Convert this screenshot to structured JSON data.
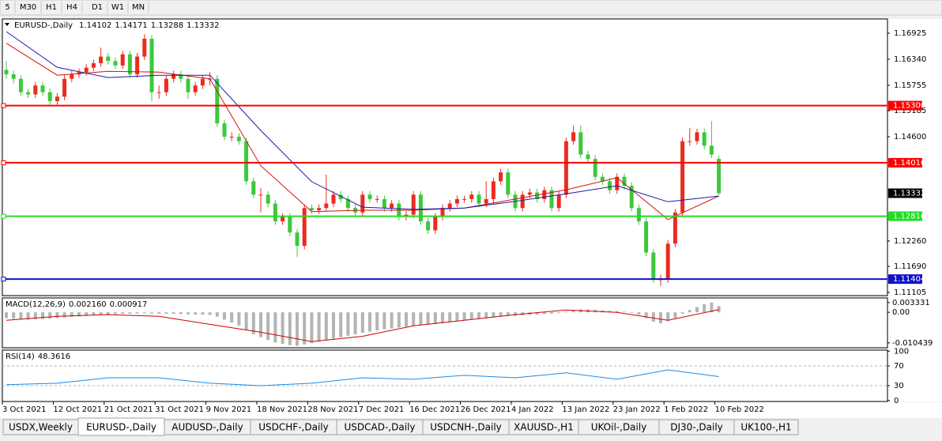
{
  "toolbar": [
    "5",
    "M30",
    "H1",
    "H4",
    "D1",
    "W1",
    "MN"
  ],
  "tabs": [
    {
      "label": "USDX,Weekly",
      "active": false
    },
    {
      "label": "EURUSD-,Daily",
      "active": true
    },
    {
      "label": "AUDUSD-,Daily",
      "active": false
    },
    {
      "label": "USDCHF-,Daily",
      "active": false
    },
    {
      "label": "USDCAD-,Daily",
      "active": false
    },
    {
      "label": "USDCNH-,Daily",
      "active": false
    },
    {
      "label": "XAUUSD-,H1",
      "active": false
    },
    {
      "label": "UKOil-,Daily",
      "active": false
    },
    {
      "label": "DJ30-,Daily",
      "active": false
    },
    {
      "label": "UK100-,H1",
      "active": false
    }
  ],
  "chart_data": {
    "type": "candlestick",
    "title": "EURUSD-,Daily",
    "categories": [
      "3 Oct 2021",
      null,
      null,
      null,
      null,
      null,
      null,
      "12 Oct 2021",
      null,
      null,
      null,
      null,
      null,
      null,
      "21 Oct 2021",
      null,
      null,
      null,
      null,
      null,
      null,
      "31 Oct 2021",
      null,
      null,
      null,
      null,
      null,
      null,
      "9 Nov 2021",
      null,
      null,
      null,
      null,
      null,
      null,
      "18 Nov 2021",
      null,
      null,
      null,
      null,
      null,
      null,
      "28 Nov 2021",
      null,
      null,
      null,
      null,
      null,
      null,
      "7 Dec 2021",
      null,
      null,
      null,
      null,
      null,
      null,
      "16 Dec 2021",
      null,
      null,
      null,
      null,
      null,
      null,
      "26 Dec 2021",
      null,
      null,
      null,
      null,
      null,
      null,
      "4 Jan 2022",
      null,
      null,
      null,
      null,
      null,
      null,
      "13 Jan 2022",
      null,
      null,
      null,
      null,
      null,
      null,
      "23 Jan 2022",
      null,
      null,
      null,
      null,
      null,
      null,
      "1 Feb 2022",
      null,
      null,
      null,
      null,
      null,
      null,
      "10 Feb 2022"
    ],
    "candles": [
      [
        1.161,
        1.163,
        1.159,
        1.16
      ],
      [
        1.16,
        1.1608,
        1.158,
        1.159
      ],
      [
        1.159,
        1.1598,
        1.1552,
        1.156
      ],
      [
        1.156,
        1.1568,
        1.1547,
        1.1555
      ],
      [
        1.1555,
        1.1583,
        1.1547,
        1.1575
      ],
      [
        1.1575,
        1.1583,
        1.1552,
        1.156
      ],
      [
        1.156,
        1.1568,
        1.1532,
        1.154
      ],
      [
        1.154,
        1.1558,
        1.1532,
        1.155
      ],
      [
        1.155,
        1.1598,
        1.1542,
        1.159
      ],
      [
        1.159,
        1.1608,
        1.1582,
        1.16
      ],
      [
        1.16,
        1.1613,
        1.1592,
        1.1605
      ],
      [
        1.1605,
        1.1623,
        1.1597,
        1.1615
      ],
      [
        1.1615,
        1.1633,
        1.1607,
        1.1625
      ],
      [
        1.1625,
        1.166,
        1.1617,
        1.164
      ],
      [
        1.164,
        1.1648,
        1.1622,
        1.163
      ],
      [
        1.163,
        1.1638,
        1.1612,
        1.162
      ],
      [
        1.162,
        1.1653,
        1.1612,
        1.1645
      ],
      [
        1.1645,
        1.1653,
        1.1592,
        1.16
      ],
      [
        1.16,
        1.1648,
        1.1592,
        1.164
      ],
      [
        1.164,
        1.169,
        1.1632,
        1.168
      ],
      [
        1.168,
        1.1688,
        1.154,
        1.156
      ],
      [
        1.156,
        1.1575,
        1.1545,
        1.156
      ],
      [
        1.156,
        1.1598,
        1.1552,
        1.159
      ],
      [
        1.159,
        1.1608,
        1.1582,
        1.16
      ],
      [
        1.16,
        1.1608,
        1.1582,
        1.159
      ],
      [
        1.159,
        1.1598,
        1.1545,
        1.156
      ],
      [
        1.156,
        1.1583,
        1.1552,
        1.1575
      ],
      [
        1.1575,
        1.1598,
        1.1567,
        1.159
      ],
      [
        1.159,
        1.1605,
        1.1575,
        1.159
      ],
      [
        1.159,
        1.1598,
        1.1482,
        1.149
      ],
      [
        1.149,
        1.1498,
        1.1452,
        1.146
      ],
      [
        1.146,
        1.147,
        1.145,
        1.146
      ],
      [
        1.146,
        1.1468,
        1.1442,
        1.145
      ],
      [
        1.145,
        1.1458,
        1.1352,
        1.136
      ],
      [
        1.136,
        1.1368,
        1.1322,
        1.133
      ],
      [
        1.133,
        1.1345,
        1.129,
        1.133
      ],
      [
        1.133,
        1.1338,
        1.1302,
        1.131
      ],
      [
        1.131,
        1.1318,
        1.1262,
        1.127
      ],
      [
        1.127,
        1.1288,
        1.1262,
        1.128
      ],
      [
        1.128,
        1.1288,
        1.1237,
        1.1245
      ],
      [
        1.1245,
        1.1253,
        1.119,
        1.1215
      ],
      [
        1.1215,
        1.1308,
        1.1207,
        1.13
      ],
      [
        1.13,
        1.1308,
        1.1287,
        1.1295
      ],
      [
        1.1295,
        1.1308,
        1.1287,
        1.13
      ],
      [
        1.13,
        1.1375,
        1.1292,
        1.131
      ],
      [
        1.131,
        1.1338,
        1.1302,
        1.133
      ],
      [
        1.133,
        1.1338,
        1.1312,
        1.132
      ],
      [
        1.132,
        1.1328,
        1.1292,
        1.13
      ],
      [
        1.13,
        1.1308,
        1.1282,
        1.129
      ],
      [
        1.129,
        1.1338,
        1.1282,
        1.133
      ],
      [
        1.133,
        1.1338,
        1.1312,
        1.132
      ],
      [
        1.132,
        1.1328,
        1.1312,
        1.132
      ],
      [
        1.132,
        1.1328,
        1.1292,
        1.13
      ],
      [
        1.13,
        1.1318,
        1.1292,
        1.131
      ],
      [
        1.131,
        1.1318,
        1.1272,
        1.128
      ],
      [
        1.128,
        1.1293,
        1.1272,
        1.1285
      ],
      [
        1.1285,
        1.1338,
        1.1277,
        1.133
      ],
      [
        1.133,
        1.1338,
        1.1262,
        1.127
      ],
      [
        1.127,
        1.1278,
        1.1242,
        1.125
      ],
      [
        1.125,
        1.1288,
        1.1242,
        1.128
      ],
      [
        1.128,
        1.1308,
        1.1272,
        1.13
      ],
      [
        1.13,
        1.1318,
        1.1292,
        1.131
      ],
      [
        1.131,
        1.1328,
        1.1302,
        1.132
      ],
      [
        1.132,
        1.1328,
        1.1312,
        1.132
      ],
      [
        1.132,
        1.1338,
        1.1312,
        1.133
      ],
      [
        1.133,
        1.1338,
        1.1302,
        1.131
      ],
      [
        1.131,
        1.136,
        1.1302,
        1.132
      ],
      [
        1.132,
        1.1368,
        1.1312,
        1.136
      ],
      [
        1.136,
        1.1388,
        1.1352,
        1.138
      ],
      [
        1.138,
        1.1388,
        1.1322,
        1.133
      ],
      [
        1.133,
        1.1338,
        1.1292,
        1.13
      ],
      [
        1.13,
        1.1338,
        1.1292,
        1.133
      ],
      [
        1.133,
        1.1343,
        1.1322,
        1.1335
      ],
      [
        1.1335,
        1.1343,
        1.1312,
        1.132
      ],
      [
        1.132,
        1.1348,
        1.1312,
        1.134
      ],
      [
        1.134,
        1.1348,
        1.1292,
        1.13
      ],
      [
        1.13,
        1.1338,
        1.1292,
        1.133
      ],
      [
        1.133,
        1.1458,
        1.1322,
        1.145
      ],
      [
        1.145,
        1.1485,
        1.1442,
        1.147
      ],
      [
        1.147,
        1.1485,
        1.1412,
        1.142
      ],
      [
        1.142,
        1.1428,
        1.1402,
        1.141
      ],
      [
        1.141,
        1.1418,
        1.1362,
        1.137
      ],
      [
        1.137,
        1.1378,
        1.1352,
        1.136
      ],
      [
        1.136,
        1.1368,
        1.1332,
        1.134
      ],
      [
        1.134,
        1.1378,
        1.1332,
        1.137
      ],
      [
        1.137,
        1.1378,
        1.1342,
        1.135
      ],
      [
        1.135,
        1.1358,
        1.1292,
        1.13
      ],
      [
        1.13,
        1.1308,
        1.1262,
        1.127
      ],
      [
        1.127,
        1.1278,
        1.1192,
        1.12
      ],
      [
        1.12,
        1.1208,
        1.1132,
        1.114
      ],
      [
        1.114,
        1.115,
        1.1125,
        1.114
      ],
      [
        1.114,
        1.1228,
        1.1132,
        1.122
      ],
      [
        1.122,
        1.1298,
        1.1212,
        1.129
      ],
      [
        1.129,
        1.1458,
        1.1282,
        1.145
      ],
      [
        1.145,
        1.148,
        1.144,
        1.145
      ],
      [
        1.145,
        1.1478,
        1.1442,
        1.147
      ],
      [
        1.147,
        1.1478,
        1.1432,
        1.144
      ],
      [
        1.144,
        1.1495,
        1.1412,
        1.142
      ],
      [
        1.14102,
        1.14171,
        1.13288,
        1.13332
      ]
    ],
    "up_color": "#ec2b1f",
    "down_color": "#3cc83c",
    "ylim": [
      1.11034,
      1.17244
    ],
    "yticks": [
      {
        "value": 1.16925,
        "label": "1.16925"
      },
      {
        "value": 1.1634,
        "label": "1.16340"
      },
      {
        "value": 1.15755,
        "label": "1.15755"
      },
      {
        "value": 1.15185,
        "label": "1.15185"
      },
      {
        "value": 1.146,
        "label": "1.14600"
      },
      {
        "value": 1.1226,
        "label": "1.12260"
      },
      {
        "value": 1.1169,
        "label": "1.11690"
      },
      {
        "value": 1.11105,
        "label": "1.11105"
      }
    ],
    "moving_averages": [
      {
        "color": "#d41010",
        "x": [
          0,
          7,
          14,
          21,
          28,
          35,
          42,
          49,
          56,
          63,
          70,
          77,
          84,
          91,
          98
        ],
        "values": [
          1.167,
          1.1598,
          1.1607,
          1.1605,
          1.159,
          1.1395,
          1.1292,
          1.1295,
          1.1295,
          1.13,
          1.132,
          1.1341,
          1.1368,
          1.1274,
          1.1327
        ]
      },
      {
        "color": "#1a1aa8",
        "x": [
          0,
          7,
          14,
          21,
          28,
          35,
          42,
          49,
          56,
          63,
          70,
          77,
          84,
          91,
          98
        ],
        "values": [
          1.1696,
          1.1616,
          1.1593,
          1.1598,
          1.1598,
          1.1474,
          1.1359,
          1.1302,
          1.1297,
          1.13,
          1.1315,
          1.1332,
          1.135,
          1.1314,
          1.1327
        ]
      }
    ],
    "levels": [
      {
        "value": 1.153,
        "label": "1.15300",
        "color": "#ff0000"
      },
      {
        "value": 1.14016,
        "label": "1.14016",
        "color": "#ff0000"
      },
      {
        "value": 1.12816,
        "label": "1.12816",
        "color": "#22dd22"
      },
      {
        "value": 1.11404,
        "label": "1.11404",
        "color": "#1010c8"
      }
    ],
    "macd": {
      "title": "MACD(12,26,9)",
      "last_label": "0.002160",
      "color": "#b4b4b4",
      "histogram": [
        -0.002,
        -0.0022,
        -0.0024,
        -0.0025,
        -0.0024,
        -0.0023,
        -0.0022,
        -0.002,
        -0.0018,
        -0.0016,
        -0.0014,
        -0.0012,
        -0.001,
        -0.0008,
        -0.0007,
        -0.0006,
        -0.0005,
        -0.0005,
        -0.0004,
        -0.0003,
        -0.0004,
        -0.0005,
        -0.0005,
        -0.0005,
        -0.0006,
        -0.0007,
        -0.0008,
        -0.0008,
        -0.0009,
        -0.0015,
        -0.0025,
        -0.0035,
        -0.0045,
        -0.006,
        -0.0075,
        -0.0085,
        -0.0095,
        -0.0103,
        -0.0108,
        -0.0112,
        -0.0114,
        -0.011,
        -0.0105,
        -0.01,
        -0.0095,
        -0.009,
        -0.0085,
        -0.008,
        -0.0075,
        -0.007,
        -0.0066,
        -0.0062,
        -0.0058,
        -0.0055,
        -0.0052,
        -0.0049,
        -0.0046,
        -0.0044,
        -0.0042,
        -0.004,
        -0.0037,
        -0.0034,
        -0.0031,
        -0.0028,
        -0.0025,
        -0.0023,
        -0.0021,
        -0.0018,
        -0.0015,
        -0.0013,
        -0.0012,
        -0.001,
        -0.0009,
        -0.0008,
        -0.0006,
        -0.0005,
        -0.0003,
        0.0003,
        0.0008,
        0.001,
        0.001,
        0.0009,
        0.0007,
        0.0005,
        0.0004,
        0.0002,
        -0.0002,
        -0.0008,
        -0.002,
        -0.0032,
        -0.0038,
        -0.003,
        -0.002,
        -0.0005,
        0.0008,
        0.0018,
        0.0028,
        0.003331,
        0.00216
      ],
      "signal": {
        "color": "#cc0000",
        "x": [
          0,
          7,
          14,
          21,
          28,
          35,
          42,
          49,
          56,
          63,
          70,
          77,
          84,
          91,
          98
        ],
        "values": [
          -0.0027,
          -0.0014,
          -0.0008,
          -0.0014,
          -0.0041,
          -0.0068,
          -0.01,
          -0.0082,
          -0.0046,
          -0.0027,
          -0.0008,
          0.0008,
          0.0,
          -0.0027,
          0.000917
        ]
      },
      "ylim": [
        -0.0121,
        0.0049
      ],
      "yticks": [
        0.003331,
        {
          "value": 0,
          "label": "0.00"
        },
        -0.010439
      ]
    },
    "rsi": {
      "title": "RSI(14)",
      "color": "#1e8ae6",
      "x": [
        0,
        7,
        14,
        21,
        28,
        35,
        42,
        49,
        56,
        63,
        70,
        77,
        84,
        91,
        98
      ],
      "values": [
        32,
        35,
        46,
        46,
        35,
        30,
        35,
        46,
        43,
        51,
        46,
        56,
        43,
        62,
        48.3616
      ],
      "ylim": [
        -2,
        102
      ],
      "yticks": [
        100,
        70,
        30,
        0
      ],
      "levels": [
        70,
        30
      ]
    }
  }
}
